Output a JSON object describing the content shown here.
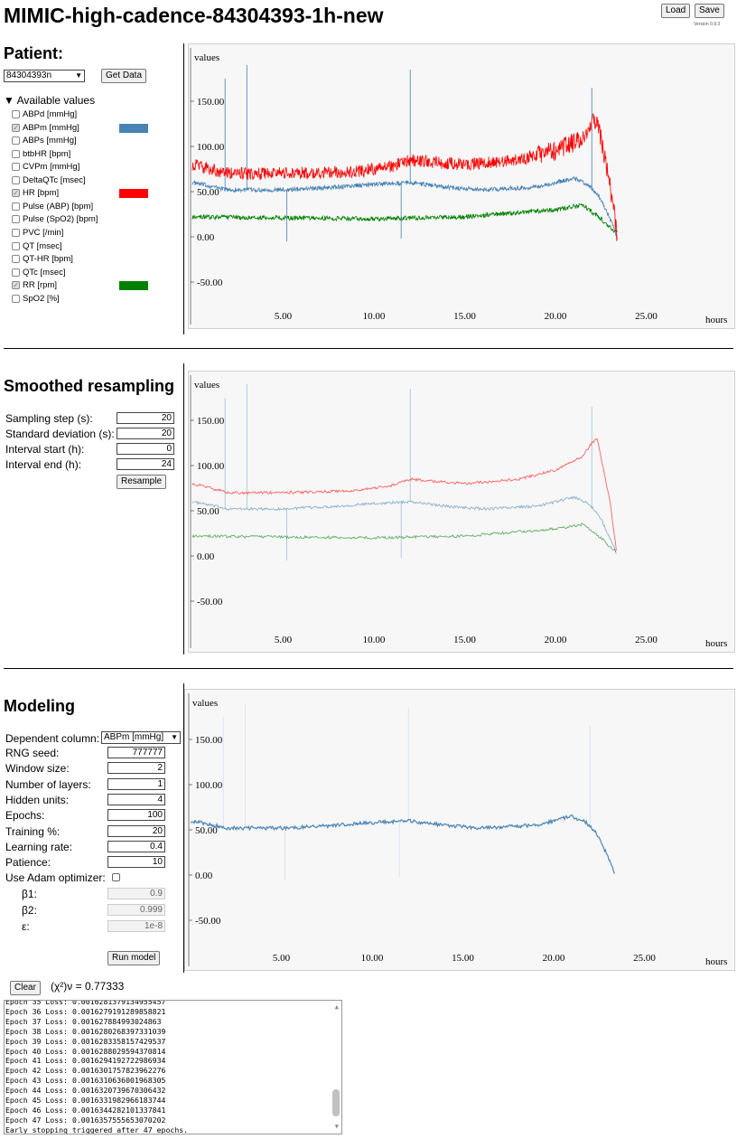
{
  "header": {
    "title": "MIMIC-high-cadence-84304393-1h-new",
    "load_label": "Load",
    "save_label": "Save",
    "version": "Version 0.9.3"
  },
  "patient": {
    "heading": "Patient:",
    "selected": "84304393n",
    "get_data_label": "Get Data",
    "available_label": "Available values",
    "values": [
      {
        "label": "ABPd [mmHg]",
        "checked": false
      },
      {
        "label": "ABPm [mmHg]",
        "checked": true,
        "color": "#4682b4"
      },
      {
        "label": "ABPs [mmHg]",
        "checked": false
      },
      {
        "label": "btbHR [bpm]",
        "checked": false
      },
      {
        "label": "CVPm [mmHg]",
        "checked": false
      },
      {
        "label": "DeltaQTc [msec]",
        "checked": false
      },
      {
        "label": "HR [bpm]",
        "checked": true,
        "color": "#ff0000"
      },
      {
        "label": "Pulse (ABP) [bpm]",
        "checked": false
      },
      {
        "label": "Pulse (SpO2) [bpm]",
        "checked": false
      },
      {
        "label": "PVC [/min]",
        "checked": false
      },
      {
        "label": "QT [msec]",
        "checked": false
      },
      {
        "label": "QT-HR [bpm]",
        "checked": false
      },
      {
        "label": "QTc [msec]",
        "checked": false
      },
      {
        "label": "RR [rpm]",
        "checked": true,
        "color": "#008000"
      },
      {
        "label": "SpO2 [%]",
        "checked": false
      }
    ]
  },
  "resampling": {
    "heading": "Smoothed resampling",
    "fields": [
      {
        "label": "Sampling step (s):",
        "value": "20"
      },
      {
        "label": "Standard deviation (s):",
        "value": "20"
      },
      {
        "label": "Interval start (h):",
        "value": "0"
      },
      {
        "label": "Interval end (h):",
        "value": "24"
      }
    ],
    "resample_label": "Resample"
  },
  "modeling": {
    "heading": "Modeling",
    "dependent_label": "Dependent column:",
    "dependent_value": "ABPm [mmHg]",
    "fields": [
      {
        "label": "RNG seed:",
        "value": "777777"
      },
      {
        "label": "Window size:",
        "value": "2"
      },
      {
        "label": "Number of layers:",
        "value": "1"
      },
      {
        "label": "Hidden units:",
        "value": "4"
      },
      {
        "label": "Epochs:",
        "value": "100"
      },
      {
        "label": "Training %:",
        "value": "20"
      },
      {
        "label": "Learning rate:",
        "value": "0.4"
      },
      {
        "label": "Patience:",
        "value": "10"
      }
    ],
    "adam_label": "Use Adam optimizer:",
    "adam_checked": false,
    "adam_fields": [
      {
        "label": "β1:",
        "value": "0.9"
      },
      {
        "label": "β2:",
        "value": "0.999"
      },
      {
        "label": "ε:",
        "value": "1e-8"
      }
    ],
    "run_label": "Run model",
    "clear_label": "Clear",
    "chi_label": "(χ²)ν = 0.77333"
  },
  "log": [
    "Epoch 35 Loss: 0.0016281379134955457",
    "Epoch 36 Loss: 0.0016279191289858821",
    "Epoch 37 Loss: 0.001627884993024863",
    "Epoch 38 Loss: 0.0016280268397331039",
    "Epoch 39 Loss: 0.0016283358157429537",
    "Epoch 40 Loss: 0.0016288029594370814",
    "Epoch 41 Loss: 0.0016294192722986934",
    "Epoch 42 Loss: 0.0016301757823962276",
    "Epoch 43 Loss: 0.0016310636001968305",
    "Epoch 44 Loss: 0.0016320739670306432",
    "Epoch 45 Loss: 0.0016331982966183744",
    "Epoch 46 Loss: 0.0016344282101337841",
    "Epoch 47 Loss: 0.0016357555653070202",
    "Early stopping triggered after 47 epochs."
  ],
  "chart_data": {
    "type": "line",
    "ylabel": "values",
    "xlabel": "hours",
    "xlim": [
      0,
      28
    ],
    "ylim": [
      -70,
      200
    ],
    "xticks": [
      "5.00",
      "10.00",
      "15.00",
      "20.00",
      "25.00"
    ],
    "yticks": [
      "150.00",
      "100.00",
      "50.00",
      "0.00",
      "-50.00"
    ],
    "series": [
      {
        "name": "ABPm [mmHg]",
        "color": "#4682b4",
        "x": [
          0,
          2,
          5,
          8,
          10,
          12,
          14,
          16,
          19,
          21,
          21.8,
          22.4,
          23,
          23.4
        ],
        "y": [
          60,
          52,
          52,
          55,
          58,
          60,
          55,
          52,
          55,
          65,
          58,
          45,
          20,
          0
        ],
        "spikes": [
          [
            1.8,
            175
          ],
          [
            3,
            190
          ],
          [
            5.2,
            -5
          ],
          [
            11.5,
            -2
          ],
          [
            12,
            185
          ],
          [
            22,
            165
          ]
        ]
      },
      {
        "name": "HR [bpm]",
        "color": "#ff0000",
        "x": [
          0,
          2,
          5,
          9,
          11,
          12,
          15,
          18,
          20,
          21.5,
          22,
          22.3,
          22.6,
          23,
          23.4
        ],
        "y": [
          80,
          70,
          70,
          72,
          78,
          85,
          80,
          85,
          95,
          110,
          125,
          130,
          100,
          60,
          0
        ]
      },
      {
        "name": "RR [rpm]",
        "color": "#008000",
        "x": [
          0,
          10,
          15,
          20,
          21.5,
          22.5,
          23,
          23.4
        ],
        "y": [
          22,
          20,
          22,
          30,
          35,
          20,
          10,
          5
        ]
      }
    ]
  }
}
